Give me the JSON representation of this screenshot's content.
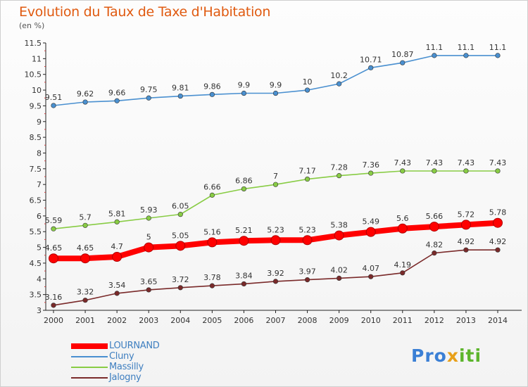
{
  "header": {
    "title": "Evolution du Taux de Taxe d'Habitation",
    "unit": "(en %)"
  },
  "logo": {
    "part1": "Pro",
    "part2": "x",
    "part3": "iti"
  },
  "chart_data": {
    "type": "line",
    "title": "Evolution du Taux de Taxe d'Habitation",
    "ylabel": "(en %)",
    "xlabel": "",
    "ylim": [
      3,
      11.5
    ],
    "ytick_step": 0.5,
    "grid": false,
    "legend_position": "bottom-left",
    "x": [
      "2000",
      "2001",
      "2002",
      "2003",
      "2004",
      "2005",
      "2006",
      "2007",
      "2008",
      "2009",
      "2010",
      "2011",
      "2012",
      "2013",
      "2014"
    ],
    "series": [
      {
        "name": "LOURNAND",
        "color": "#ff0000",
        "emphasis": true,
        "values": [
          4.65,
          4.65,
          4.7,
          5,
          5.05,
          5.16,
          5.21,
          5.23,
          5.23,
          5.38,
          5.49,
          5.6,
          5.66,
          5.72,
          5.78
        ],
        "labels": [
          "4.65",
          "4.65",
          "4.7",
          "5",
          "5.05",
          "5.16",
          "5.21",
          "5.23",
          "5.23",
          "5.38",
          "5.49",
          "5.6",
          "5.66",
          "5.72",
          "5.78"
        ]
      },
      {
        "name": "Cluny",
        "color": "#4a90d0",
        "emphasis": false,
        "values": [
          9.51,
          9.62,
          9.66,
          9.75,
          9.81,
          9.86,
          9.9,
          9.9,
          10,
          10.2,
          10.71,
          10.87,
          11.1,
          11.1,
          11.1
        ],
        "labels": [
          "9.51",
          "9.62",
          "9.66",
          "9.75",
          "9.81",
          "9.86",
          "9.9",
          "9.9",
          "10",
          "10.2",
          "10.71",
          "10.87",
          "11.1",
          "11.1",
          "11.1"
        ]
      },
      {
        "name": "Massilly",
        "color": "#88cc44",
        "emphasis": false,
        "values": [
          5.59,
          5.7,
          5.81,
          5.93,
          6.05,
          6.66,
          6.86,
          7,
          7.17,
          7.28,
          7.36,
          7.43,
          7.43,
          7.43,
          7.43
        ],
        "labels": [
          "5.59",
          "5.7",
          "5.81",
          "5.93",
          "6.05",
          "6.66",
          "6.86",
          "7",
          "7.17",
          "7.28",
          "7.36",
          "7.43",
          "7.43",
          "7.43",
          "7.43"
        ]
      },
      {
        "name": "Jalogny",
        "color": "#7a2a2a",
        "emphasis": false,
        "values": [
          3.16,
          3.32,
          3.54,
          3.65,
          3.72,
          3.78,
          3.84,
          3.92,
          3.97,
          4.02,
          4.07,
          4.19,
          4.82,
          4.92,
          4.92
        ],
        "labels": [
          "3.16",
          "3.32",
          "3.54",
          "3.65",
          "3.72",
          "3.78",
          "3.84",
          "3.92",
          "3.97",
          "4.02",
          "4.07",
          "4.19",
          "4.82",
          "4.92",
          "4.92"
        ]
      }
    ]
  }
}
